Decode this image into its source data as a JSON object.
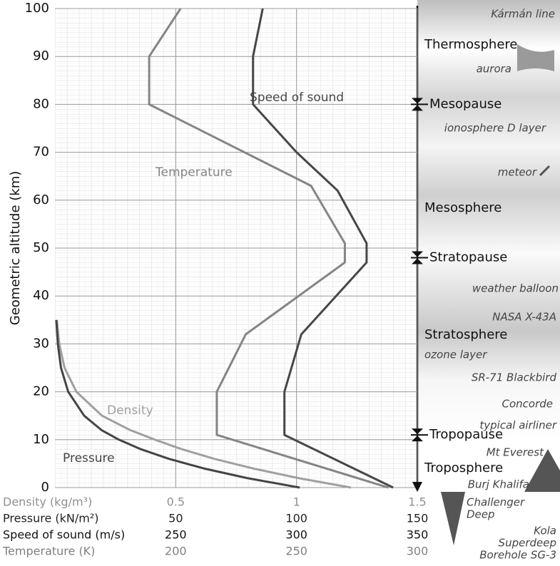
{
  "chart_data": {
    "type": "line",
    "ylabel": "Geometric altitude (km)",
    "ylim": [
      0,
      100
    ],
    "yticks": [
      0,
      10,
      20,
      30,
      40,
      50,
      60,
      70,
      80,
      90,
      100
    ],
    "grid": true,
    "x_axes": [
      {
        "label": "Density (kg/m³)",
        "color": "#909090",
        "xlim": [
          0,
          1.5
        ],
        "xticks": [
          0.5,
          1,
          1.5
        ]
      },
      {
        "label": "Pressure (kN/m²)",
        "color": "#222222",
        "xlim": [
          0,
          150
        ],
        "xticks": [
          50,
          100,
          150
        ]
      },
      {
        "label": "Speed of sound (m/s)",
        "color": "#111111",
        "xlim": [
          200,
          350
        ],
        "xticks": [
          250,
          300,
          350
        ]
      },
      {
        "label": "Temperature (K)",
        "color": "#808080",
        "xlim": [
          150,
          300
        ],
        "xticks": [
          200,
          250,
          300
        ]
      }
    ],
    "series": [
      {
        "name": "Density",
        "color": "#a0a0a0",
        "x_axis": 0,
        "x": [
          1.225,
          1.007,
          0.819,
          0.66,
          0.526,
          0.414,
          0.312,
          0.195,
          0.089,
          0.04,
          0.018,
          0.008
        ],
        "y": [
          0,
          2,
          4,
          6,
          8,
          10,
          12,
          15,
          20,
          25,
          30,
          35
        ]
      },
      {
        "name": "Pressure",
        "color": "#444444",
        "x_axis": 1,
        "x": [
          101.3,
          79.5,
          61.6,
          47.2,
          35.6,
          26.5,
          19.3,
          12.1,
          5.5,
          2.5,
          1.2,
          0.57
        ],
        "y": [
          0,
          2,
          4,
          6,
          8,
          10,
          12,
          15,
          20,
          25,
          30,
          35
        ]
      },
      {
        "name": "Temperature",
        "color": "#858585",
        "x_axis": 3,
        "x": [
          288,
          217,
          217,
          229,
          270,
          270,
          256,
          189,
          189,
          202
        ],
        "y": [
          0,
          11,
          20,
          32,
          47,
          51,
          63,
          80,
          90,
          100
        ]
      },
      {
        "name": "Speed of sound",
        "color": "#474747",
        "x_axis": 2,
        "x": [
          340,
          295,
          295,
          302,
          329,
          329,
          317,
          300,
          282,
          282,
          286
        ],
        "y": [
          0,
          11,
          20,
          32,
          47,
          51,
          62,
          70,
          80,
          90,
          100
        ]
      }
    ],
    "layers": [
      "Thermosphere",
      "Mesosphere",
      "Stratosphere",
      "Troposphere"
    ],
    "boundaries": [
      {
        "name": "Mesopause",
        "altitude": 80
      },
      {
        "name": "Stratopause",
        "altitude": 48
      },
      {
        "name": "Tropopause",
        "altitude": 11
      }
    ],
    "annotations": [
      [
        "Kármán line"
      ],
      [
        "aurora"
      ],
      [
        "ionosphere D layer"
      ],
      [
        "meteor"
      ],
      [
        "weather balloon"
      ],
      [
        "NASA X-43A"
      ],
      [
        "ozone layer"
      ],
      [
        "SR-71 Blackbird"
      ],
      [
        "Concorde"
      ],
      [
        "typical airliner"
      ],
      [
        "Mt Everest"
      ],
      [
        "Burj Khalifa"
      ],
      [
        "Challenger",
        "Deep"
      ],
      [
        "Kola",
        "Superdeep",
        "Borehole SG-3"
      ]
    ]
  }
}
